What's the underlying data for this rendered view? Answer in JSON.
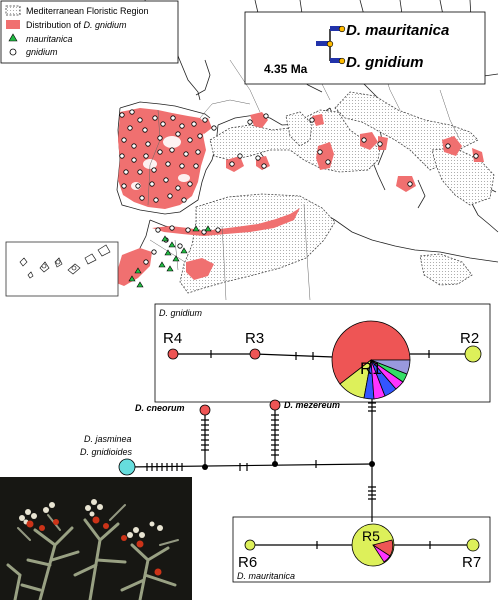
{
  "legend": {
    "mediterranean_label": "Mediterranean Floristic Region",
    "distribution_prefix": "Distribution of ",
    "distribution_species": "D. gnidium",
    "mauritanica_label": "mauritanica",
    "gnidium_label": "gnidium"
  },
  "tree": {
    "top_label": "D. mauritanica",
    "bottom_label": "D. gnidium",
    "age_label": "4.35 Ma"
  },
  "network": {
    "gnidium_box_label": "D. gnidium",
    "mauritanica_box_label": "D.  mauritanica",
    "cneorum_label": "D. cneorum",
    "mezereum_label": "D. mezereum",
    "jasminea_label": "D. jasminea",
    "gnidioides_label": "D. gnidioides",
    "haplotypes": {
      "R1": "R1",
      "R2": "R2",
      "R3": "R3",
      "R4": "R4",
      "R5": "R5",
      "R6": "R6",
      "R7": "R7"
    }
  },
  "colors": {
    "distribution": "#f07070",
    "mauritanica": "#ddf05a",
    "gnidium": "#ee5555",
    "outgroup": "#66dddd",
    "slice_blue": "#3355ff",
    "slice_magenta": "#ff33ff",
    "slice_green": "#33dd66",
    "slice_purple": "#9999dd"
  }
}
